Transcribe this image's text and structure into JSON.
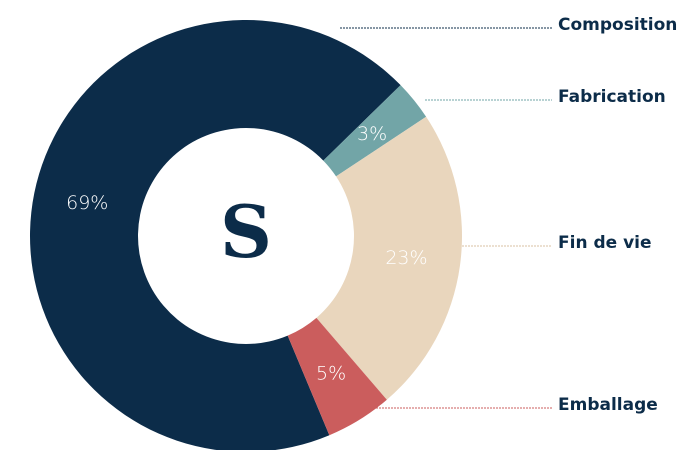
{
  "chart_data": {
    "type": "donut",
    "center_label": "S",
    "categories": [
      "Composition",
      "Fabrication",
      "Fin de vie",
      "Emballage"
    ],
    "values": [
      69,
      3,
      23,
      5
    ],
    "value_labels": [
      "69%",
      "3%",
      "23%",
      "5%"
    ],
    "colors": [
      "#0c2c49",
      "#72a5a7",
      "#e9d6bd",
      "#cb5d5d"
    ]
  }
}
